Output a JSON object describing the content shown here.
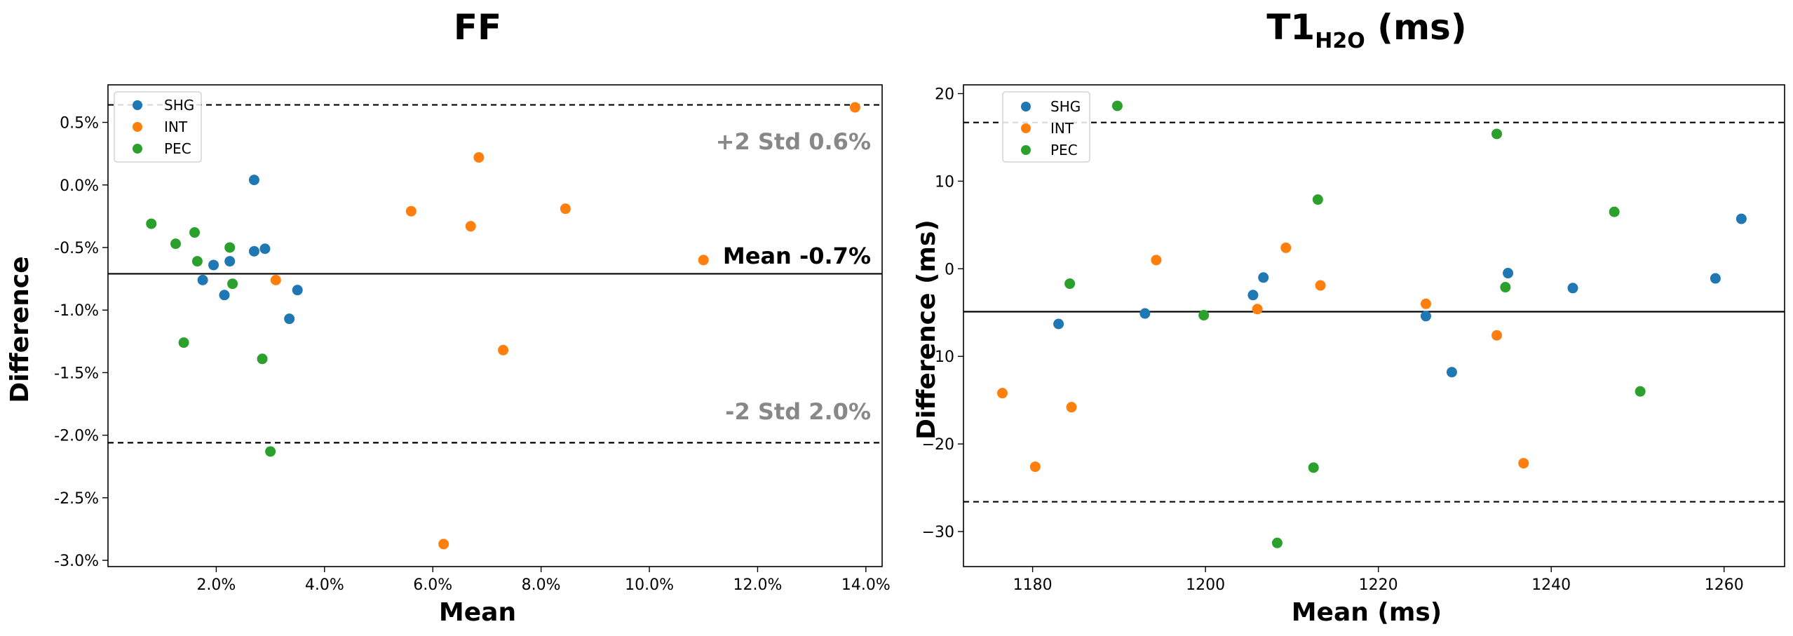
{
  "colors": {
    "SHG": "#1f77b4",
    "INT": "#ff7f0e",
    "PEC": "#2ca02c",
    "annot_gray": "#888888"
  },
  "chart_data": [
    {
      "type": "scatter",
      "title": "FF",
      "xlabel": "Mean",
      "ylabel": "Difference",
      "xlim": [
        0.0,
        14.3
      ],
      "ylim": [
        -3.05,
        0.8
      ],
      "xticks": [
        2,
        4,
        6,
        8,
        10,
        12,
        14
      ],
      "xtick_labels": [
        "2.0%",
        "4.0%",
        "6.0%",
        "8.0%",
        "10.0%",
        "12.0%",
        "14.0%"
      ],
      "yticks": [
        0.5,
        0.0,
        -0.5,
        -1.0,
        -1.5,
        -2.0,
        -2.5,
        -3.0
      ],
      "ytick_labels": [
        "0.5%",
        "0.0%",
        "-0.5%",
        "-1.0%",
        "-1.5%",
        "-2.0%",
        "-2.5%",
        "-3.0%"
      ],
      "legend": [
        "SHG",
        "INT",
        "PEC"
      ],
      "legend_position": "top-left",
      "mean_line": -0.71,
      "upper_line": 0.64,
      "lower_line": -2.06,
      "annotations": {
        "upper": "+2 Std 0.6%",
        "mean": "Mean -0.7%",
        "lower": "-2 Std 2.0%"
      },
      "series": [
        {
          "name": "SHG",
          "points": [
            [
              1.75,
              -0.76
            ],
            [
              1.95,
              -0.64
            ],
            [
              2.15,
              -0.88
            ],
            [
              2.25,
              -0.61
            ],
            [
              2.7,
              -0.53
            ],
            [
              2.7,
              0.04
            ],
            [
              2.9,
              -0.51
            ],
            [
              3.35,
              -1.07
            ],
            [
              3.5,
              -0.84
            ]
          ]
        },
        {
          "name": "INT",
          "points": [
            [
              3.1,
              -0.76
            ],
            [
              5.6,
              -0.21
            ],
            [
              6.2,
              -2.87
            ],
            [
              6.7,
              -0.33
            ],
            [
              6.85,
              0.22
            ],
            [
              7.3,
              -1.32
            ],
            [
              8.45,
              -0.19
            ],
            [
              11.0,
              -0.6
            ],
            [
              13.8,
              0.62
            ]
          ]
        },
        {
          "name": "PEC",
          "points": [
            [
              0.8,
              -0.31
            ],
            [
              1.25,
              -0.47
            ],
            [
              1.4,
              -1.26
            ],
            [
              1.6,
              -0.38
            ],
            [
              1.65,
              -0.61
            ],
            [
              2.25,
              -0.5
            ],
            [
              2.3,
              -0.79
            ],
            [
              2.85,
              -1.39
            ],
            [
              3.0,
              -2.13
            ]
          ]
        }
      ]
    },
    {
      "type": "scatter",
      "title": "T1",
      "title_sub": "H2O",
      "title_suffix": " (ms)",
      "xlabel": "Mean (ms)",
      "ylabel": "Difference (ms)",
      "xlim": [
        1172,
        1267
      ],
      "ylim": [
        -34,
        21
      ],
      "xticks": [
        1180,
        1200,
        1220,
        1240,
        1260
      ],
      "xtick_labels": [
        "1180",
        "1200",
        "1220",
        "1240",
        "1260"
      ],
      "yticks": [
        20,
        10,
        0,
        -10,
        -20,
        -30
      ],
      "ytick_labels": [
        "20",
        "10",
        "0",
        "−10",
        "−20",
        "−30"
      ],
      "legend": [
        "SHG",
        "INT",
        "PEC"
      ],
      "legend_position": "top-left",
      "mean_line": -4.9,
      "upper_line": 16.7,
      "lower_line": -26.6,
      "series": [
        {
          "name": "SHG",
          "points": [
            [
              1183,
              -6.3
            ],
            [
              1193,
              -5.1
            ],
            [
              1205.5,
              -3.0
            ],
            [
              1206.7,
              -1.0
            ],
            [
              1225.5,
              -5.4
            ],
            [
              1228.5,
              -11.8
            ],
            [
              1235,
              -0.5
            ],
            [
              1242.5,
              -2.2
            ],
            [
              1259,
              -1.1
            ],
            [
              1262,
              5.7
            ]
          ]
        },
        {
          "name": "INT",
          "points": [
            [
              1176.5,
              -14.2
            ],
            [
              1180.3,
              -22.6
            ],
            [
              1184.5,
              -15.8
            ],
            [
              1194.3,
              1.0
            ],
            [
              1206,
              -4.6
            ],
            [
              1209.3,
              2.4
            ],
            [
              1213.3,
              -1.9
            ],
            [
              1225.5,
              -4.0
            ],
            [
              1233.7,
              -7.6
            ],
            [
              1236.8,
              -22.2
            ]
          ]
        },
        {
          "name": "PEC",
          "points": [
            [
              1184.3,
              -1.7
            ],
            [
              1189.8,
              18.6
            ],
            [
              1199.8,
              -5.3
            ],
            [
              1208.3,
              -31.3
            ],
            [
              1212.5,
              -22.7
            ],
            [
              1213,
              7.9
            ],
            [
              1233.7,
              15.4
            ],
            [
              1234.7,
              -2.1
            ],
            [
              1247.3,
              6.5
            ],
            [
              1250.3,
              -14.0
            ]
          ]
        }
      ]
    }
  ]
}
